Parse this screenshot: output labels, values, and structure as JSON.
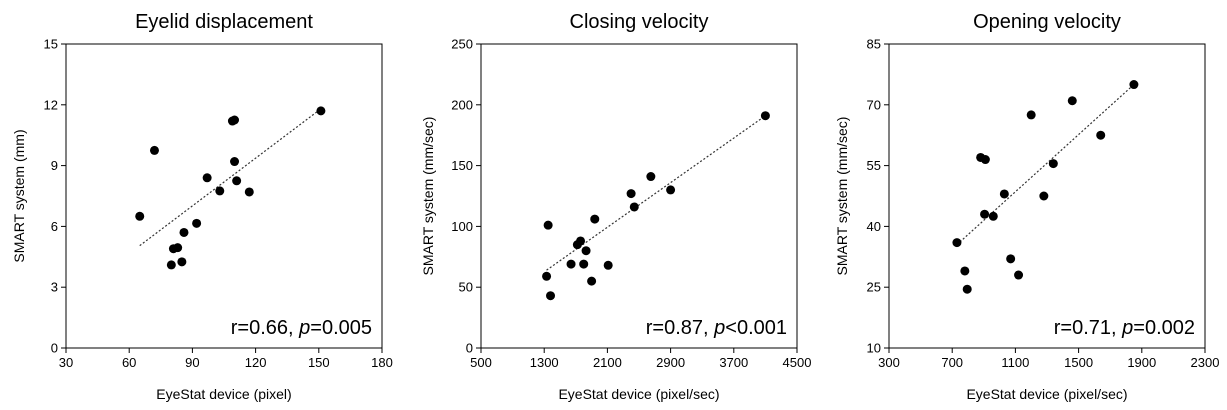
{
  "colors": {
    "marker": "#000000",
    "axis": "#000000",
    "trendline": "#333333"
  },
  "chart_data": [
    {
      "type": "scatter",
      "title": "Eyelid displacement",
      "xlabel": "EyeStat device (pixel)",
      "ylabel": "SMART system (mm)",
      "xlim": [
        30,
        180
      ],
      "ylim": [
        0,
        15
      ],
      "xticks": [
        "30",
        "60",
        "90",
        "120",
        "150",
        "180"
      ],
      "yticks": [
        "0",
        "3",
        "6",
        "9",
        "12",
        "15"
      ],
      "stat": {
        "r": "r=0.66, ",
        "p_symbol": "p",
        "p_value": "=0.005"
      },
      "trendline": {
        "x": [
          65,
          151
        ],
        "y": [
          5.05,
          11.8
        ]
      },
      "x": [
        65,
        72,
        80,
        81,
        83,
        85,
        86,
        92,
        97,
        103,
        109,
        110,
        110,
        111,
        117,
        151
      ],
      "y": [
        6.5,
        9.75,
        4.1,
        4.9,
        4.95,
        4.25,
        5.7,
        6.15,
        8.4,
        7.75,
        11.2,
        11.25,
        9.2,
        8.25,
        7.7,
        11.7
      ],
      "grid": false,
      "legend": "none"
    },
    {
      "type": "scatter",
      "title": "Closing velocity",
      "xlabel": "EyeStat device (pixel/sec)",
      "ylabel": "SMART system (mm/sec)",
      "xlim": [
        500,
        4500
      ],
      "ylim": [
        0,
        250
      ],
      "xticks": [
        "500",
        "1300",
        "2100",
        "2900",
        "3700",
        "4500"
      ],
      "yticks": [
        "0",
        "50",
        "100",
        "150",
        "200",
        "250"
      ],
      "stat": {
        "r": "r=0.87, ",
        "p_symbol": "p",
        "p_value": "<0.001"
      },
      "trendline": {
        "x": [
          1330,
          4100
        ],
        "y": [
          64,
          191
        ]
      },
      "x": [
        1330,
        1350,
        1380,
        1640,
        1720,
        1760,
        1800,
        1830,
        1900,
        1940,
        2110,
        2400,
        2440,
        2650,
        2900,
        4100
      ],
      "y": [
        59,
        101,
        43,
        69,
        85,
        88,
        69,
        80,
        55,
        106,
        68,
        127,
        116,
        141,
        130,
        191
      ],
      "grid": false,
      "legend": "none"
    },
    {
      "type": "scatter",
      "title": "Opening velocity",
      "xlabel": "EyeStat device (pixel/sec)",
      "ylabel": "SMART system (mm/sec)",
      "xlim": [
        300,
        2300
      ],
      "ylim": [
        10,
        85
      ],
      "xticks": [
        "300",
        "700",
        "1100",
        "1500",
        "1900",
        "2300"
      ],
      "yticks": [
        "10",
        "25",
        "40",
        "55",
        "70",
        "85"
      ],
      "stat": {
        "r": "r=0.71, ",
        "p_symbol": "p",
        "p_value": "=0.002"
      },
      "trendline": {
        "x": [
          730,
          1850
        ],
        "y": [
          35.5,
          75
        ]
      },
      "x": [
        730,
        780,
        795,
        880,
        905,
        910,
        960,
        1030,
        1070,
        1120,
        1200,
        1280,
        1340,
        1460,
        1640,
        1850
      ],
      "y": [
        36,
        29,
        24.5,
        57,
        43,
        56.5,
        42.5,
        48,
        32,
        28,
        67.5,
        47.5,
        55.5,
        71,
        62.5,
        75
      ]
    }
  ]
}
